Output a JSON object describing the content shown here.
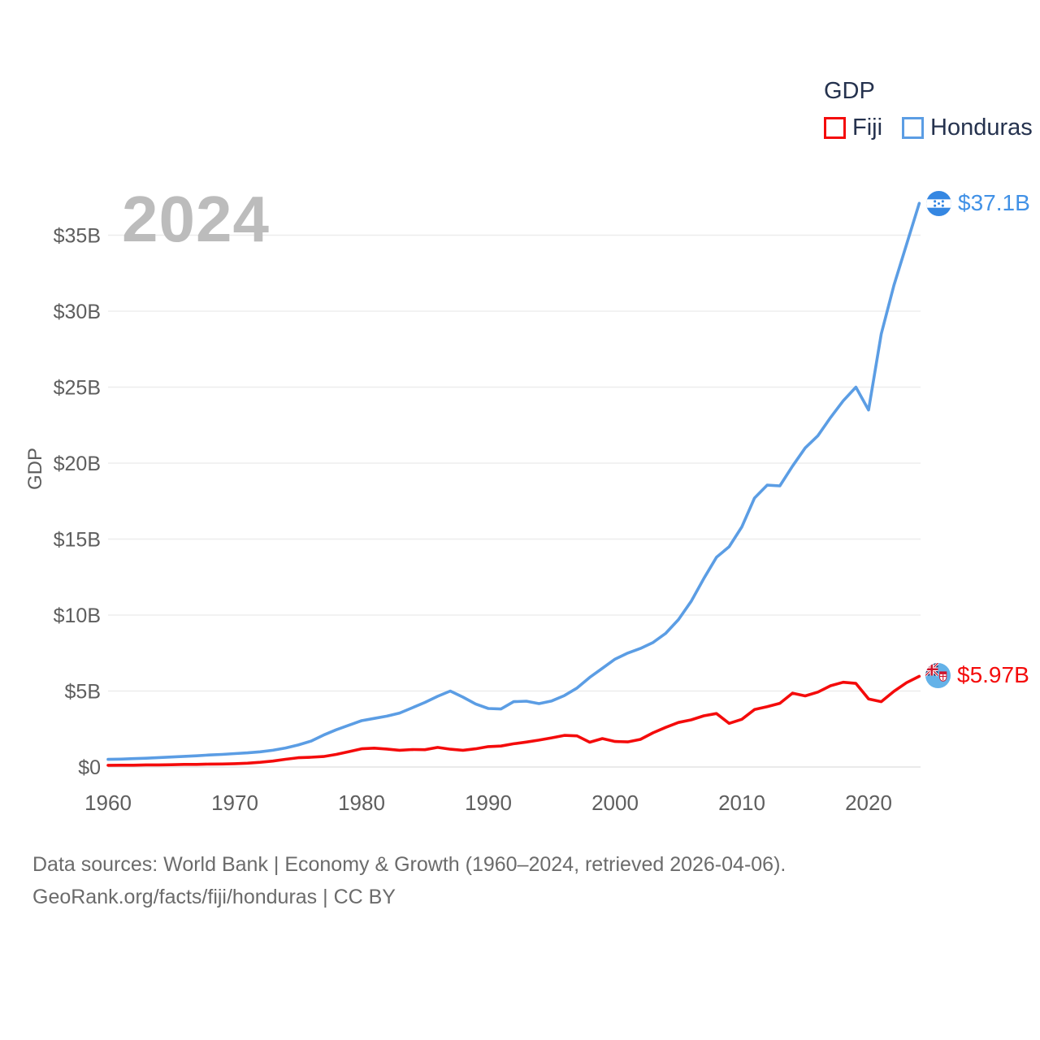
{
  "chart": {
    "year_watermark": "2024",
    "legend": {
      "title": "GDP",
      "items": [
        {
          "label": "Fiji"
        },
        {
          "label": "Honduras"
        }
      ]
    },
    "y_axis": {
      "label": "GDP"
    },
    "end_labels": [
      {
        "series": "Honduras",
        "value": "$37.1B",
        "color": "#4191e6"
      },
      {
        "series": "Fiji",
        "value": "$5.97B",
        "color": "#f40b0b"
      }
    ]
  },
  "chart_data": {
    "type": "line",
    "title": "GDP",
    "x": [
      1960,
      1961,
      1962,
      1963,
      1964,
      1965,
      1966,
      1967,
      1968,
      1969,
      1970,
      1971,
      1972,
      1973,
      1974,
      1975,
      1976,
      1977,
      1978,
      1979,
      1980,
      1981,
      1982,
      1983,
      1984,
      1985,
      1986,
      1987,
      1988,
      1989,
      1990,
      1991,
      1992,
      1993,
      1994,
      1995,
      1996,
      1997,
      1998,
      1999,
      2000,
      2001,
      2002,
      2003,
      2004,
      2005,
      2006,
      2007,
      2008,
      2009,
      2010,
      2011,
      2012,
      2013,
      2014,
      2015,
      2016,
      2017,
      2018,
      2019,
      2020,
      2021,
      2022,
      2023,
      2024
    ],
    "series": [
      {
        "name": "Fiji",
        "color": "#f40b0b",
        "unit": "billion USD",
        "values": [
          0.11,
          0.12,
          0.12,
          0.14,
          0.14,
          0.15,
          0.17,
          0.17,
          0.19,
          0.2,
          0.22,
          0.25,
          0.31,
          0.39,
          0.51,
          0.61,
          0.64,
          0.69,
          0.83,
          1.01,
          1.2,
          1.24,
          1.18,
          1.1,
          1.15,
          1.14,
          1.29,
          1.17,
          1.1,
          1.2,
          1.34,
          1.38,
          1.53,
          1.64,
          1.77,
          1.92,
          2.08,
          2.05,
          1.63,
          1.87,
          1.68,
          1.65,
          1.82,
          2.25,
          2.61,
          2.93,
          3.1,
          3.37,
          3.52,
          2.87,
          3.14,
          3.78,
          3.97,
          4.19,
          4.86,
          4.68,
          4.93,
          5.35,
          5.58,
          5.5,
          4.48,
          4.3,
          4.98,
          5.55,
          5.97
        ]
      },
      {
        "name": "Honduras",
        "color": "#5b9de4",
        "unit": "billion USD",
        "values": [
          0.5,
          0.52,
          0.55,
          0.58,
          0.62,
          0.66,
          0.7,
          0.74,
          0.79,
          0.83,
          0.88,
          0.93,
          1.0,
          1.1,
          1.25,
          1.45,
          1.7,
          2.1,
          2.45,
          2.75,
          3.05,
          3.2,
          3.35,
          3.55,
          3.9,
          4.25,
          4.65,
          5.0,
          4.6,
          4.15,
          3.85,
          3.82,
          4.3,
          4.33,
          4.17,
          4.35,
          4.7,
          5.2,
          5.9,
          6.5,
          7.1,
          7.5,
          7.8,
          8.2,
          8.8,
          9.7,
          10.9,
          12.4,
          13.8,
          14.5,
          15.8,
          17.7,
          18.55,
          18.5,
          19.8,
          21.0,
          21.8,
          23.0,
          24.1,
          25.0,
          23.5,
          28.5,
          31.7,
          34.4,
          37.1
        ]
      }
    ],
    "xlim": [
      1960,
      2024
    ],
    "ylim": [
      0,
      37.5
    ],
    "ytick_values": [
      0,
      5,
      10,
      15,
      20,
      25,
      30,
      35
    ],
    "ytick_labels": [
      "$0",
      "$5B",
      "$10B",
      "$15B",
      "$20B",
      "$25B",
      "$30B",
      "$35B"
    ],
    "xtick_values": [
      1960,
      1970,
      1980,
      1990,
      2000,
      2010,
      2020
    ],
    "xtick_labels": [
      "1960",
      "1970",
      "1980",
      "1990",
      "2000",
      "2010",
      "2020"
    ],
    "xlabel": "",
    "ylabel": "GDP",
    "grid": "horizontal",
    "legend_position": "top-right",
    "final_value_labels": {
      "Honduras": "$37.1B",
      "Fiji": "$5.97B"
    }
  },
  "footer": {
    "line1": "Data sources: World Bank | Economy & Growth (1960–2024, retrieved 2026-04-06).",
    "line2": "GeoRank.org/facts/fiji/honduras | CC BY"
  }
}
